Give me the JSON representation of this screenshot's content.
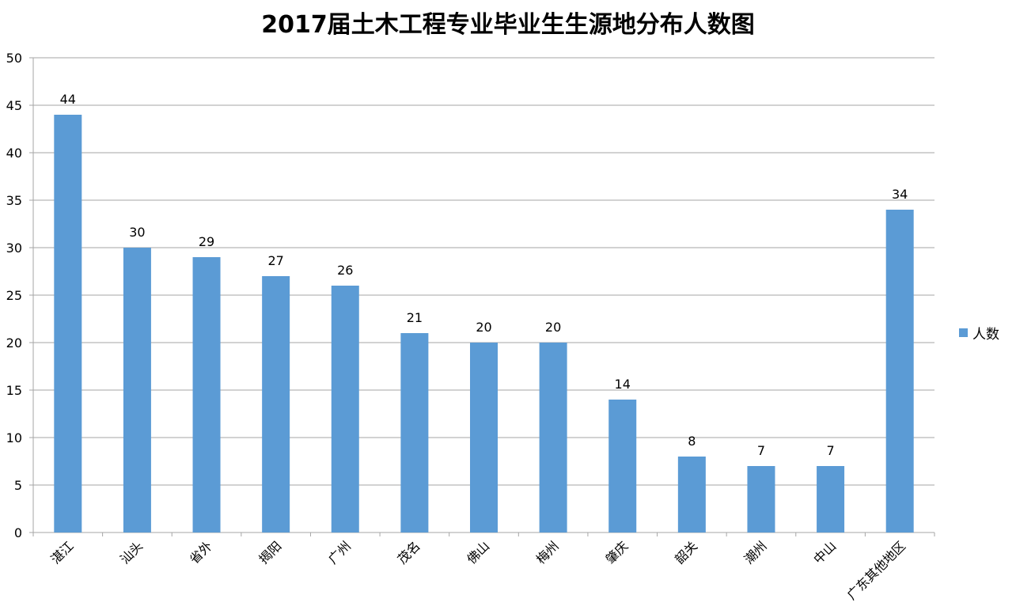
{
  "chart_data": {
    "type": "bar",
    "title": "2017届土木工程专业毕业生生源地分布人数图",
    "xlabel": "",
    "ylabel": "",
    "categories": [
      "湛江",
      "汕头",
      "省外",
      "揭阳",
      "广州",
      "茂名",
      "佛山",
      "梅州",
      "肇庆",
      "韶关",
      "潮州",
      "中山",
      "广东其他地区"
    ],
    "series": [
      {
        "name": "人数",
        "values": [
          44,
          30,
          29,
          27,
          26,
          21,
          20,
          20,
          14,
          8,
          7,
          7,
          34
        ],
        "color": "#5B9BD5"
      }
    ],
    "ylim": [
      0,
      50
    ],
    "yticks": [
      0,
      5,
      10,
      15,
      20,
      25,
      30,
      35,
      40,
      45,
      50
    ],
    "grid": true,
    "legend_position": "right",
    "data_labels": true
  }
}
